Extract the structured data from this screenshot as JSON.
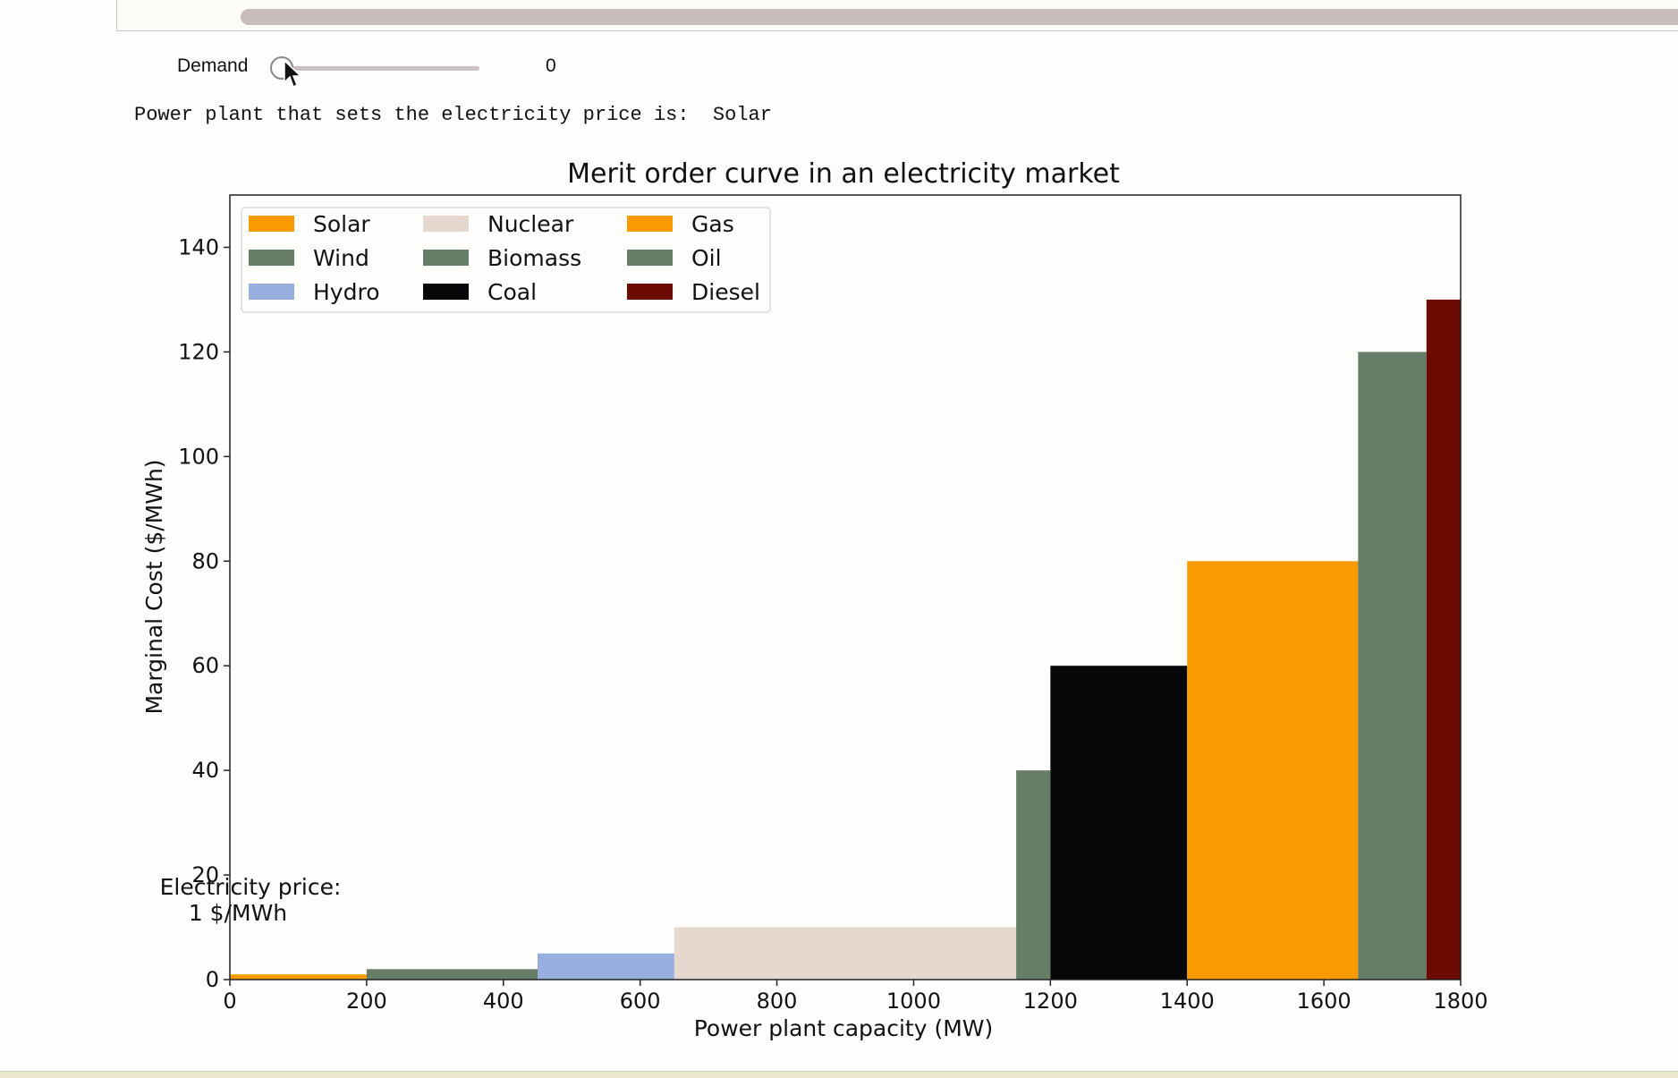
{
  "widget": {
    "demand_label": "Demand",
    "demand_value": "0",
    "price_text_prefix": "Power plant that sets the electricity price is:",
    "price_setter": "Solar"
  },
  "chart_data": {
    "type": "bar",
    "title": "Merit order curve in an electricity market",
    "xlabel": "Power plant capacity (MW)",
    "ylabel": "Marginal Cost ($/MWh)",
    "xlim": [
      0,
      1800
    ],
    "ylim": [
      0,
      150
    ],
    "xticks": [
      0,
      200,
      400,
      600,
      800,
      1000,
      1200,
      1400,
      1600,
      1800
    ],
    "yticks": [
      0,
      20,
      40,
      60,
      80,
      100,
      120,
      140
    ],
    "legend_position": "top-left",
    "annotation": {
      "line1": "Electricity price:",
      "line2": "1 $/MWh"
    },
    "series": [
      {
        "name": "Solar",
        "start": 0,
        "capacity": 200,
        "cost": 1,
        "color": "#f89a00"
      },
      {
        "name": "Wind",
        "start": 200,
        "capacity": 250,
        "cost": 2,
        "color": "#667e67"
      },
      {
        "name": "Hydro",
        "start": 450,
        "capacity": 200,
        "cost": 5,
        "color": "#98aede"
      },
      {
        "name": "Nuclear",
        "start": 650,
        "capacity": 500,
        "cost": 10,
        "color": "#e6d7cf"
      },
      {
        "name": "Biomass",
        "start": 1150,
        "capacity": 50,
        "cost": 40,
        "color": "#667e67"
      },
      {
        "name": "Coal",
        "start": 1200,
        "capacity": 200,
        "cost": 60,
        "color": "#050708"
      },
      {
        "name": "Gas",
        "start": 1400,
        "capacity": 250,
        "cost": 80,
        "color": "#f89a00"
      },
      {
        "name": "Oil",
        "start": 1650,
        "capacity": 100,
        "cost": 120,
        "color": "#667e67"
      },
      {
        "name": "Diesel",
        "start": 1750,
        "capacity": 50,
        "cost": 130,
        "color": "#6b0b03"
      }
    ]
  }
}
